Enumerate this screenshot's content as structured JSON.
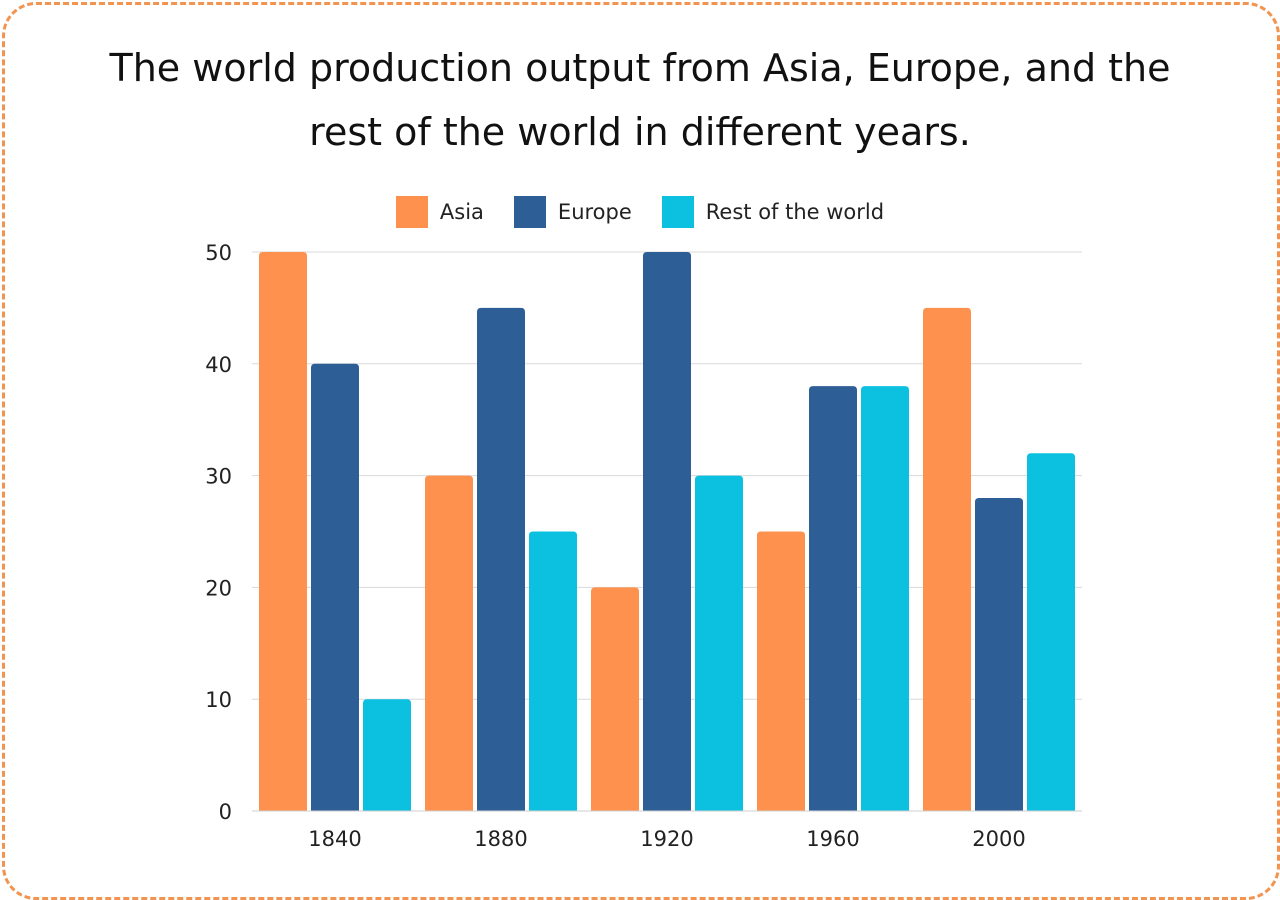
{
  "chart_data": {
    "type": "bar",
    "title": "The world production output from Asia, Europe, and the rest of the world in different years.",
    "xlabel": "",
    "ylabel": "",
    "categories": [
      "1840",
      "1880",
      "1920",
      "1960",
      "2000"
    ],
    "series": [
      {
        "name": "Asia",
        "color": "#fd914d",
        "values": [
          50,
          30,
          20,
          25,
          45
        ]
      },
      {
        "name": "Europe",
        "color": "#2e5e96",
        "values": [
          40,
          45,
          50,
          38,
          28
        ]
      },
      {
        "name": "Rest of the world",
        "color": "#0cc0e0",
        "values": [
          10,
          25,
          30,
          38,
          32
        ]
      }
    ],
    "ylim": [
      0,
      50
    ],
    "yticks": [
      0,
      10,
      20,
      30,
      40,
      50
    ],
    "grid": true,
    "legend_position": "top-center"
  }
}
